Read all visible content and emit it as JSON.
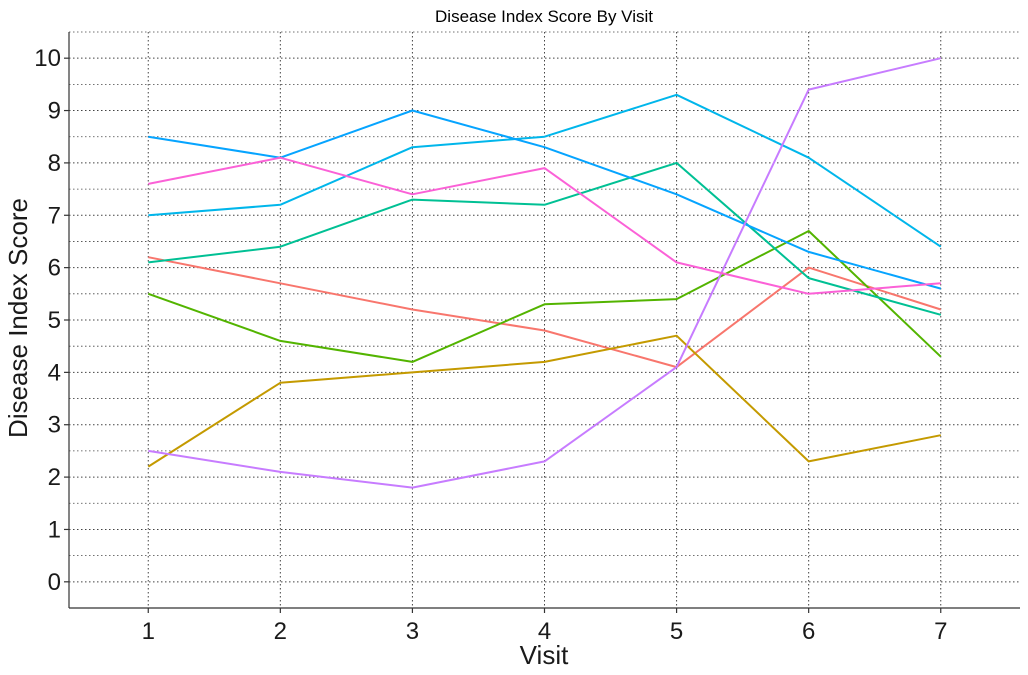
{
  "chart_data": {
    "type": "line",
    "title": "Disease Index Score By Visit",
    "xlabel": "Visit",
    "ylabel": "Disease Index Score",
    "x": [
      1,
      2,
      3,
      4,
      5,
      6,
      7
    ],
    "xlim": [
      0.4,
      7.6
    ],
    "ylim": [
      -0.5,
      10.5
    ],
    "yticks": [
      0,
      1,
      2,
      3,
      4,
      5,
      6,
      7,
      8,
      9,
      10
    ],
    "grid": true,
    "legend": "none",
    "series": [
      {
        "color": "#F8766D",
        "values": [
          6.2,
          5.7,
          5.2,
          4.8,
          4.1,
          6.0,
          5.2
        ]
      },
      {
        "color": "#C49A00",
        "values": [
          2.2,
          3.8,
          4.0,
          4.2,
          4.7,
          2.3,
          2.8
        ]
      },
      {
        "color": "#53B400",
        "values": [
          5.5,
          4.6,
          4.2,
          5.3,
          5.4,
          6.7,
          4.3
        ]
      },
      {
        "color": "#00C094",
        "values": [
          6.1,
          6.4,
          7.3,
          7.2,
          8.0,
          5.8,
          5.1
        ]
      },
      {
        "color": "#00B6EB",
        "values": [
          7.0,
          7.2,
          8.3,
          8.5,
          9.3,
          8.1,
          6.4
        ]
      },
      {
        "color": "#06A4FF",
        "values": [
          8.5,
          8.1,
          9.0,
          8.3,
          7.4,
          6.3,
          5.6
        ]
      },
      {
        "color": "#C77CFF",
        "values": [
          2.5,
          2.1,
          1.8,
          2.3,
          4.1,
          9.4,
          10.0
        ]
      },
      {
        "color": "#FB61D7",
        "values": [
          7.6,
          8.1,
          7.4,
          7.9,
          6.1,
          5.5,
          5.7
        ]
      }
    ]
  }
}
